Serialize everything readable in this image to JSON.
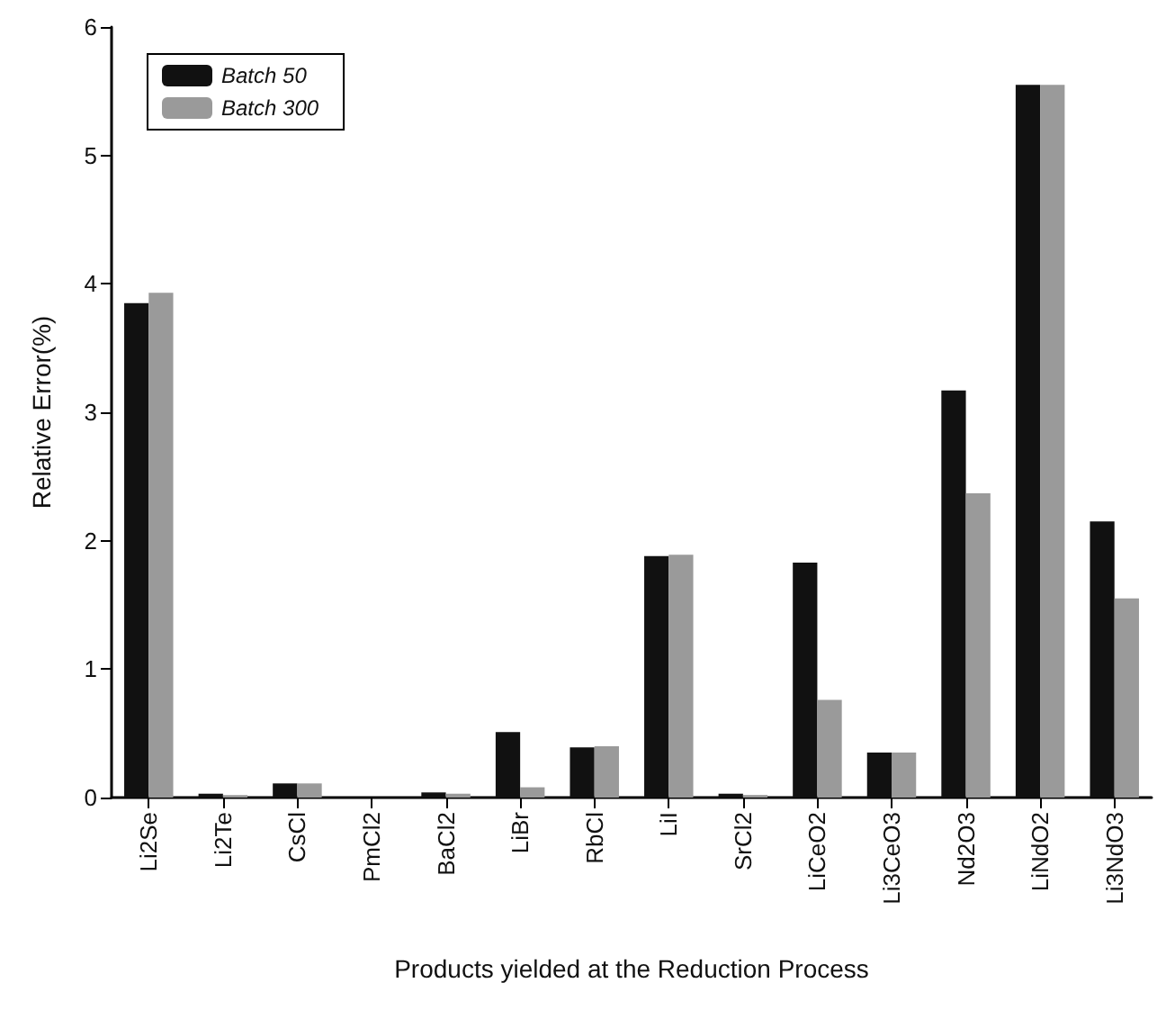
{
  "chart_data": {
    "type": "bar",
    "xlabel": "Products yielded at the Reduction Process",
    "ylabel": "Relative Error(%)",
    "categories": [
      "Li2Se",
      "Li2Te",
      "CsCl",
      "PmCl2",
      "BaCl2",
      "LiBr",
      "RbCl",
      "LiI",
      "SrCl2",
      "LiCeO2",
      "Li3CeO3",
      "Nd2O3",
      "LiNdO2",
      "Li3NdO3"
    ],
    "series": [
      {
        "name": "Batch 50",
        "color": "#111111",
        "values": [
          3.85,
          0.03,
          0.11,
          null,
          0.04,
          0.51,
          0.39,
          1.88,
          0.03,
          1.83,
          0.35,
          3.17,
          5.55,
          2.15
        ]
      },
      {
        "name": "Batch 300",
        "color": "#9a9a9a",
        "values": [
          3.93,
          0.02,
          0.11,
          null,
          0.03,
          0.08,
          0.4,
          1.89,
          0.02,
          0.76,
          0.35,
          2.37,
          5.55,
          1.55
        ]
      }
    ],
    "ylim": [
      0,
      6
    ],
    "yticks": [
      0,
      1,
      2,
      3,
      4,
      5,
      6
    ],
    "legend": "top left",
    "grid": false
  }
}
